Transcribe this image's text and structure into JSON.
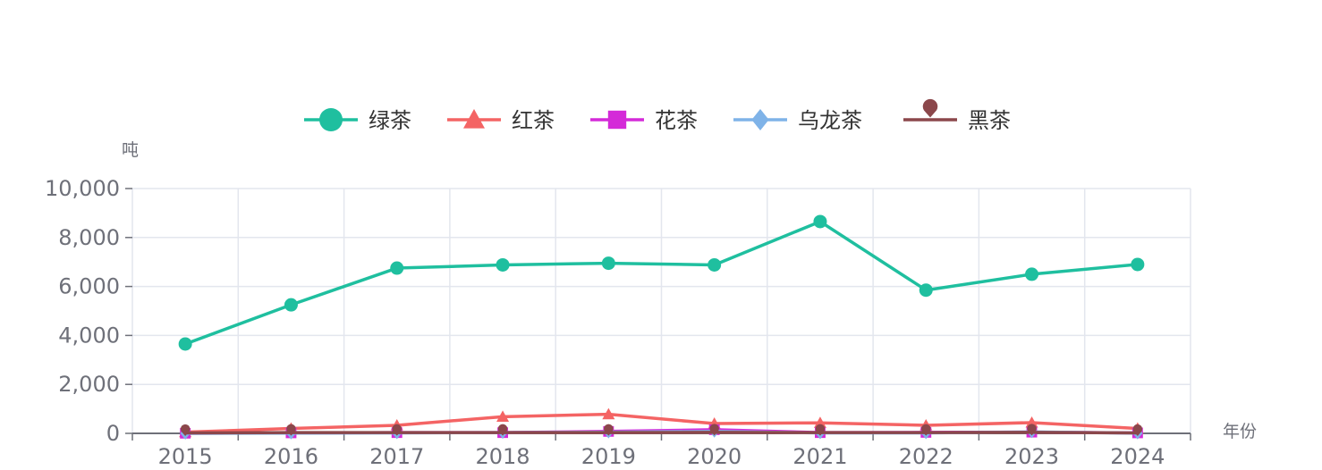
{
  "chart_data": {
    "type": "line",
    "title": "",
    "xlabel": "年份",
    "ylabel": "吨",
    "categories": [
      "2015",
      "2016",
      "2017",
      "2018",
      "2019",
      "2020",
      "2021",
      "2022",
      "2023",
      "2024"
    ],
    "ylim": [
      0,
      10000
    ],
    "yticks": [
      "0",
      "2,000",
      "4,000",
      "6,000",
      "8,000",
      "10,000"
    ],
    "grid": true,
    "legend_position": "top-center",
    "series": [
      {
        "name": "绿茶",
        "marker": "circle",
        "color": "#1fbf9f",
        "values": [
          3650,
          5250,
          6750,
          6880,
          6950,
          6880,
          8650,
          5850,
          6500,
          6900
        ]
      },
      {
        "name": "红茶",
        "marker": "triangle",
        "color": "#f46464",
        "values": [
          50,
          200,
          330,
          680,
          780,
          400,
          430,
          330,
          440,
          200
        ]
      },
      {
        "name": "花茶",
        "marker": "square",
        "color": "#d42ad8",
        "values": [
          5,
          20,
          30,
          30,
          80,
          150,
          30,
          40,
          50,
          20
        ]
      },
      {
        "name": "乌龙茶",
        "marker": "diamond",
        "color": "#7fb3e8",
        "values": [
          0,
          10,
          20,
          30,
          50,
          80,
          20,
          20,
          60,
          10
        ]
      },
      {
        "name": "黑茶",
        "marker": "pin",
        "color": "#8b474b",
        "values": [
          20,
          30,
          30,
          30,
          30,
          40,
          30,
          30,
          40,
          20
        ]
      }
    ]
  }
}
